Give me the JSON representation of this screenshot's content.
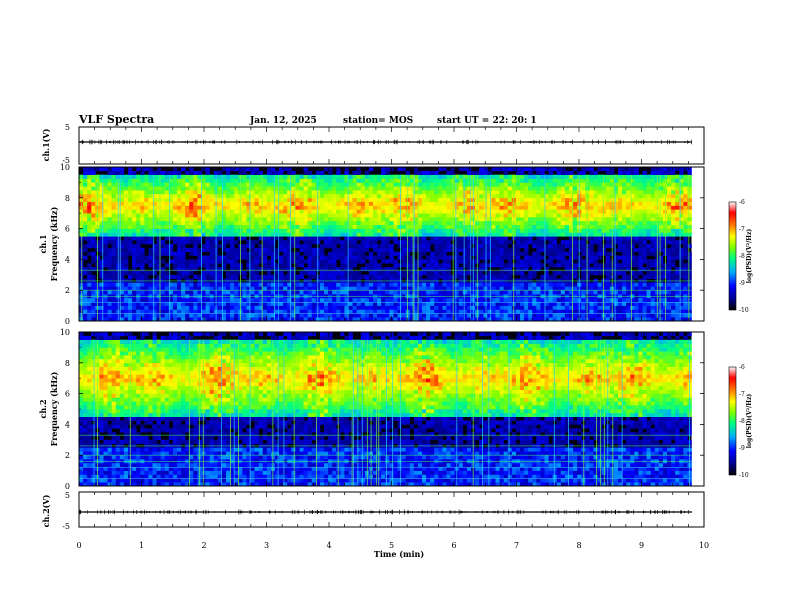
{
  "header": {
    "title": "VLF Spectra",
    "date": "Jan. 12, 2025",
    "station": "station= MOS",
    "start": "start  UT =   22: 20: 1"
  },
  "chart_data": [
    {
      "type": "line",
      "panel": "ch1_waveform",
      "ylabel": "ch.1(V)",
      "ylim": [
        -5,
        5
      ],
      "yticks": [
        "5",
        "-5"
      ],
      "xlim": [
        0,
        10
      ],
      "series": [
        {
          "values_description_free": true,
          "level": 0.0
        }
      ]
    },
    {
      "type": "heatmap",
      "panel": "ch1_spectrogram",
      "ylabel": "ch.1\nFrequency (kHz)",
      "ylabel_top": "ch.1",
      "ylabel_bottom": "Frequency (kHz)",
      "ylim": [
        0,
        10
      ],
      "yticks": [
        "0",
        "2",
        "4",
        "6",
        "8",
        "10"
      ],
      "xlim": [
        0,
        9.8
      ],
      "colorbar": {
        "label": "log(PSD)(V²/Hz)",
        "range": [
          -10,
          -6
        ],
        "ticks": [
          "-6",
          "-7",
          "-8",
          "-9",
          "-10"
        ]
      },
      "emission_band_khz": [
        5.5,
        9.5
      ]
    },
    {
      "type": "heatmap",
      "panel": "ch2_spectrogram",
      "ylabel_top": "ch.2",
      "ylabel_bottom": "Frequency (kHz)",
      "ylim": [
        0,
        10
      ],
      "yticks": [
        "0",
        "2",
        "4",
        "6",
        "8",
        "10"
      ],
      "xlim": [
        0,
        9.8
      ],
      "colorbar": {
        "label": "log(PSD)(V²/Hz)",
        "range": [
          -10,
          -6
        ],
        "ticks": [
          "-6",
          "-7",
          "-8",
          "-9",
          "-10"
        ]
      },
      "emission_band_khz": [
        4.5,
        9.5
      ]
    },
    {
      "type": "line",
      "panel": "ch2_waveform",
      "ylabel": "ch.2(V)",
      "ylim": [
        -5,
        5
      ],
      "yticks": [
        "5",
        "-5"
      ],
      "xlim": [
        0,
        10
      ],
      "series": [
        {
          "level": 0.0
        }
      ]
    }
  ],
  "xaxis": {
    "label": "Time  (min)",
    "ticks": [
      "0",
      "1",
      "2",
      "3",
      "4",
      "5",
      "6",
      "7",
      "8",
      "9",
      "10"
    ]
  },
  "colors": {
    "spectrogram_scale": [
      "#000000",
      "#00008b",
      "#0000ff",
      "#00aaff",
      "#00ff80",
      "#80ff00",
      "#ffff00",
      "#ff8000",
      "#ff0000",
      "#ffffff"
    ],
    "axes": "#000000",
    "background": "#ffffff"
  }
}
